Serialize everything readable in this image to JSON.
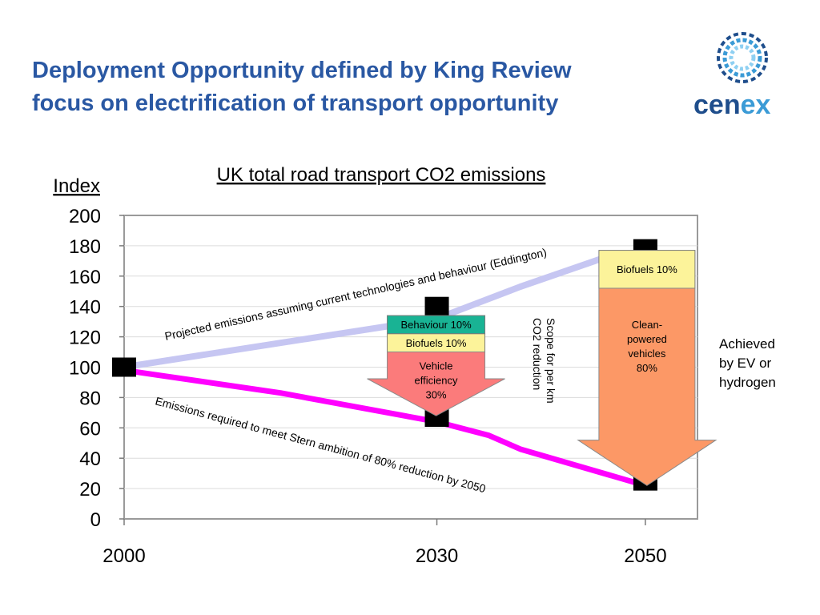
{
  "slide": {
    "title_line1": "Deployment Opportunity defined by King Review",
    "title_line2": "focus on electrification of transport opportunity"
  },
  "logo": {
    "icon": "cenex-logo-swirl-icon",
    "text_a": "cen",
    "text_b": "ex",
    "color_dark": "#1f4e8c",
    "color_light": "#3b9bd6"
  },
  "chart_data": {
    "type": "line",
    "title": "UK total road transport CO2 emissions",
    "ylabel": "Index",
    "ylim": [
      0,
      200
    ],
    "yticks": [
      "0",
      "20",
      "40",
      "60",
      "80",
      "100",
      "120",
      "140",
      "160",
      "180",
      "200"
    ],
    "xlim": [
      2000,
      2055
    ],
    "xticks": [
      "2000",
      "2030",
      "2050"
    ],
    "grid": true,
    "series": [
      {
        "color": "#c6c6f2",
        "points": [
          [
            2000,
            100
          ],
          [
            2030,
            132
          ],
          [
            2038,
            153
          ],
          [
            2046,
            172
          ]
        ],
        "label": "Projected emissions assuming current technologies and behaviour (Eddington)"
      },
      {
        "color": "#ff00ff",
        "points": [
          [
            2000,
            98
          ],
          [
            2015,
            83
          ],
          [
            2030,
            64
          ],
          [
            2035,
            55
          ],
          [
            2038,
            46
          ],
          [
            2045,
            32
          ],
          [
            2050,
            22
          ]
        ],
        "label": "Emissions required to meet Stern ambition of 80% reduction by 2050"
      }
    ],
    "markers": [
      [
        2000,
        100
      ],
      [
        2030,
        140
      ],
      [
        2030,
        67
      ],
      [
        2050,
        178
      ],
      [
        2050,
        25
      ]
    ],
    "stack_2030": {
      "segments": [
        {
          "label": "Behaviour 10%",
          "color": "#19b394",
          "from": 122,
          "to": 134
        },
        {
          "label": "Biofuels 10%",
          "color": "#fcf39a",
          "from": 110,
          "to": 122
        }
      ],
      "arrow": {
        "label_lines": [
          "Vehicle",
          "efficiency",
          "30%"
        ],
        "color": "#fb7b7b",
        "from": 110,
        "to": 68
      }
    },
    "stack_2050": {
      "segments": [
        {
          "label": "Biofuels 10%",
          "color": "#fcf39a",
          "from": 152,
          "to": 177
        }
      ],
      "arrow": {
        "label_lines": [
          "Clean-",
          "powered",
          "vehicles",
          "80%"
        ],
        "color": "#fc9866",
        "from": 152,
        "to": 22
      }
    },
    "vertical_note": [
      "Scope for per km",
      "CO2 reduction"
    ]
  },
  "side_note": {
    "lines": [
      "Achieved",
      "by EV or",
      "hydrogen"
    ]
  }
}
